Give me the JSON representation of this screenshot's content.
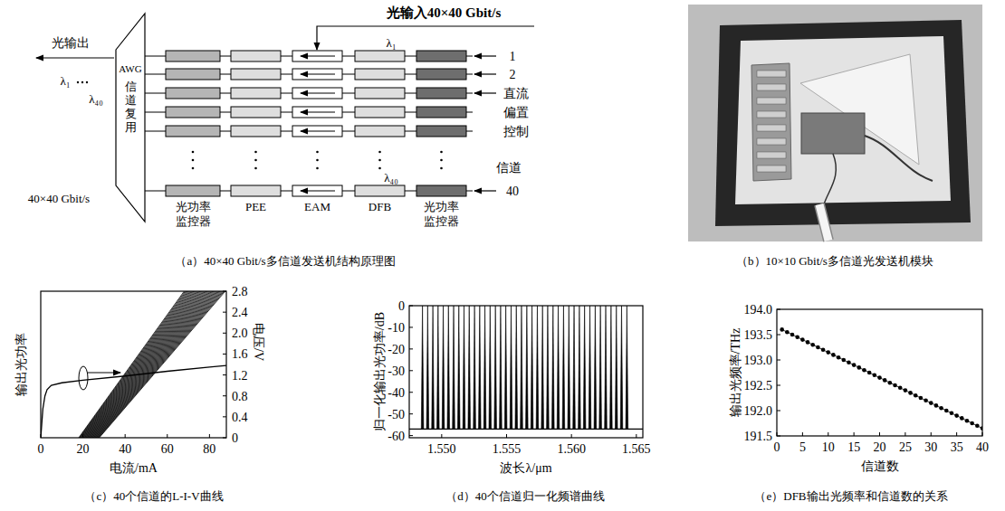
{
  "diagram": {
    "caption": "（a）40×40 Gbit/s多信道发送机结构原理图",
    "input_label": "光输入40×40 Gbit/s",
    "output_label": "光输出",
    "output_wavelengths": [
      "λ₁",
      "λ₄₀"
    ],
    "output_rate": "40×40 Gbit/s",
    "multiplexer": {
      "name": "AWG",
      "function": "信道复用"
    },
    "columns": [
      "光功率监控器",
      "PEE",
      "EAM",
      "DFB",
      "光功率监控器"
    ],
    "wavelength_labels": [
      "λ₁",
      "λ₄₀"
    ],
    "channel_labels": [
      "1",
      "2",
      "40"
    ],
    "channel_axis_label": "信道",
    "bias_label": "直流偏置控制"
  },
  "photo": {
    "caption": "（b）10×10 Gbit/s多信道光发送机模块"
  },
  "chart_data": [
    {
      "type": "line",
      "title": "（c）40个信道的L-I-V曲线",
      "x_label": "电流/mA",
      "y_label": "输出光功率",
      "y2_label": "电压/V",
      "color": "#000000",
      "xlim": [
        0,
        88
      ],
      "xticks": [
        0,
        20,
        40,
        60,
        80
      ],
      "ylim": [
        0,
        1
      ],
      "yticks": [],
      "y2lim": [
        0,
        2.8
      ],
      "y2ticks": [
        0,
        0.4,
        0.8,
        1.2,
        1.6,
        {
          "value": 2,
          "label": "2.0"
        },
        2.4,
        2.8
      ],
      "series": [
        {
          "x": [
            18,
            68
          ],
          "values": [
            0,
            1
          ]
        },
        {
          "x": [
            18.25,
            68.5
          ],
          "values": [
            0,
            1
          ]
        },
        {
          "x": [
            18.5,
            69
          ],
          "values": [
            0,
            1
          ]
        },
        {
          "x": [
            18.75,
            69.5
          ],
          "values": [
            0,
            1
          ]
        },
        {
          "x": [
            19,
            70
          ],
          "values": [
            0,
            1
          ]
        },
        {
          "x": [
            19.25,
            70.5
          ],
          "values": [
            0,
            1
          ]
        },
        {
          "x": [
            19.5,
            71
          ],
          "values": [
            0,
            1
          ]
        },
        {
          "x": [
            19.75,
            71.5
          ],
          "values": [
            0,
            1
          ]
        },
        {
          "x": [
            20,
            72
          ],
          "values": [
            0,
            1
          ]
        },
        {
          "x": [
            20.25,
            72.5
          ],
          "values": [
            0,
            1
          ]
        },
        {
          "x": [
            20.5,
            73
          ],
          "values": [
            0,
            1
          ]
        },
        {
          "x": [
            20.75,
            73.5
          ],
          "values": [
            0,
            1
          ]
        },
        {
          "x": [
            21,
            74
          ],
          "values": [
            0,
            1
          ]
        },
        {
          "x": [
            21.25,
            74.5
          ],
          "values": [
            0,
            1
          ]
        },
        {
          "x": [
            21.5,
            75
          ],
          "values": [
            0,
            1
          ]
        },
        {
          "x": [
            21.75,
            75.5
          ],
          "values": [
            0,
            1
          ]
        },
        {
          "x": [
            22,
            76
          ],
          "values": [
            0,
            1
          ]
        },
        {
          "x": [
            22.25,
            76.5
          ],
          "values": [
            0,
            1
          ]
        },
        {
          "x": [
            22.5,
            77
          ],
          "values": [
            0,
            1
          ]
        },
        {
          "x": [
            22.75,
            77.5
          ],
          "values": [
            0,
            1
          ]
        },
        {
          "x": [
            23,
            78
          ],
          "values": [
            0,
            1
          ]
        },
        {
          "x": [
            23.25,
            78.5
          ],
          "values": [
            0,
            1
          ]
        },
        {
          "x": [
            23.5,
            79
          ],
          "values": [
            0,
            1
          ]
        },
        {
          "x": [
            23.75,
            79.5
          ],
          "values": [
            0,
            1
          ]
        },
        {
          "x": [
            24,
            80
          ],
          "values": [
            0,
            1
          ]
        },
        {
          "x": [
            24.25,
            80.5
          ],
          "values": [
            0,
            1
          ]
        },
        {
          "x": [
            24.5,
            81
          ],
          "values": [
            0,
            1
          ]
        },
        {
          "x": [
            24.75,
            81.5
          ],
          "values": [
            0,
            1
          ]
        },
        {
          "x": [
            25,
            82
          ],
          "values": [
            0,
            1
          ]
        },
        {
          "x": [
            25.25,
            82.5
          ],
          "values": [
            0,
            1
          ]
        },
        {
          "x": [
            25.5,
            83
          ],
          "values": [
            0,
            1
          ]
        },
        {
          "x": [
            25.75,
            83.5
          ],
          "values": [
            0,
            1
          ]
        },
        {
          "x": [
            26,
            84
          ],
          "values": [
            0,
            1
          ]
        },
        {
          "x": [
            26.25,
            84.5
          ],
          "values": [
            0,
            1
          ]
        },
        {
          "x": [
            26.5,
            85
          ],
          "values": [
            0,
            1
          ]
        },
        {
          "x": [
            26.75,
            85.5
          ],
          "values": [
            0,
            1
          ]
        },
        {
          "x": [
            27,
            86
          ],
          "values": [
            0,
            1
          ]
        },
        {
          "x": [
            27.25,
            86.5
          ],
          "values": [
            0,
            1
          ]
        },
        {
          "x": [
            27.5,
            87
          ],
          "values": [
            0,
            1
          ]
        },
        {
          "x": [
            27.75,
            87.5
          ],
          "values": [
            0,
            1
          ]
        },
        {
          "axis": "y2",
          "x": [
            0,
            1,
            2,
            3,
            5,
            10,
            20,
            40,
            60,
            80,
            88
          ],
          "values": [
            0,
            0.55,
            0.8,
            0.92,
            1.0,
            1.05,
            1.1,
            1.18,
            1.27,
            1.35,
            1.38
          ]
        }
      ]
    },
    {
      "type": "spectrum",
      "title": "（d）40个信道归一化频谱曲线",
      "x_label": "波长λ/μm",
      "y_label": "归一化输出光功率/dB",
      "color": "#000000",
      "xlim": [
        1.5475,
        1.5655
      ],
      "xticks": [
        {
          "value": 1.55,
          "label": "1.550"
        },
        {
          "value": 1.555,
          "label": "1.555"
        },
        {
          "value": 1.56,
          "label": "1.560"
        },
        {
          "value": 1.565,
          "label": "1.565"
        }
      ],
      "ylim": [
        -61,
        0
      ],
      "yticks": [
        0,
        -10,
        -20,
        -30,
        -40,
        -50,
        -60
      ],
      "x": [
        1.54852,
        1.54892,
        1.54932,
        1.54972,
        1.55012,
        1.55052,
        1.55092,
        1.55132,
        1.55172,
        1.55212,
        1.55253,
        1.55293,
        1.55333,
        1.55373,
        1.55414,
        1.55454,
        1.55494,
        1.55535,
        1.55575,
        1.55615,
        1.55656,
        1.55696,
        1.55737,
        1.55777,
        1.55817,
        1.55858,
        1.55898,
        1.55939,
        1.5598,
        1.5602,
        1.56061,
        1.56101,
        1.56142,
        1.56183,
        1.56223,
        1.56264,
        1.56305,
        1.56346,
        1.56386,
        1.56427
      ],
      "values": [
        0,
        0,
        0,
        0,
        0,
        0,
        0,
        0,
        0,
        0,
        0,
        0,
        0,
        0,
        0,
        0,
        0,
        0,
        0,
        0,
        0,
        0,
        0,
        0,
        0,
        0,
        0,
        0,
        0,
        0,
        0,
        0,
        0,
        0,
        0,
        0,
        0,
        0,
        0,
        0
      ],
      "noise_floor": -57
    },
    {
      "type": "line",
      "marker": "circle",
      "title": "（e）DFB输出光频率和信道数的关系",
      "x_label": "信道数",
      "y_label": "输出光频率/THz",
      "color": "#000000",
      "xlim": [
        0,
        40
      ],
      "xticks": [
        0,
        5,
        10,
        15,
        20,
        25,
        30,
        35,
        40
      ],
      "ylim": [
        191.5,
        194
      ],
      "yticks": [
        191.5,
        {
          "value": 192,
          "label": "192.0"
        },
        192.5,
        {
          "value": 193,
          "label": "193.0"
        },
        193.5,
        {
          "value": 194,
          "label": "194.0"
        }
      ],
      "x": [
        1,
        2,
        3,
        4,
        5,
        6,
        7,
        8,
        9,
        10,
        11,
        12,
        13,
        14,
        15,
        16,
        17,
        18,
        19,
        20,
        21,
        22,
        23,
        24,
        25,
        26,
        27,
        28,
        29,
        30,
        31,
        32,
        33,
        34,
        35,
        36,
        37,
        38,
        39,
        40
      ],
      "values": [
        193.6,
        193.55,
        193.5,
        193.45,
        193.4,
        193.35,
        193.3,
        193.25,
        193.2,
        193.15,
        193.1,
        193.05,
        193,
        192.95,
        192.9,
        192.85,
        192.8,
        192.75,
        192.7,
        192.65,
        192.6,
        192.55,
        192.5,
        192.45,
        192.4,
        192.35,
        192.3,
        192.25,
        192.2,
        192.15,
        192.1,
        192.05,
        192,
        191.95,
        191.9,
        191.85,
        191.8,
        191.75,
        191.7,
        191.65
      ]
    }
  ]
}
